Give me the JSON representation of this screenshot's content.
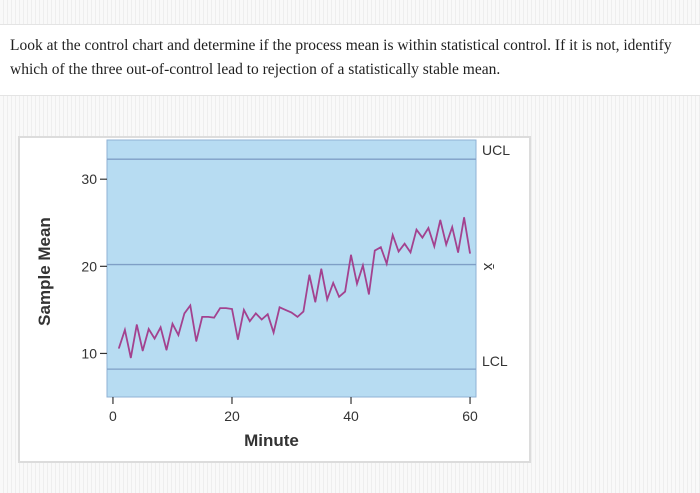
{
  "question": {
    "text": "Look at the control chart and determine if the process mean is within statistical control. If it is not, identify which of the three out-of-control lead to rejection of a statistically stable mean."
  },
  "chart_data": {
    "type": "line",
    "xlabel": "Minute",
    "ylabel": "Sample Mean",
    "xlim": [
      -1,
      61
    ],
    "ylim": [
      5,
      34.5
    ],
    "x_ticks": [
      0,
      20,
      40,
      60
    ],
    "x_tick_labels": [
      "0",
      "20",
      "40",
      "60"
    ],
    "y_ticks": [
      10,
      20,
      30
    ],
    "y_tick_labels": [
      "10",
      "20",
      "30"
    ],
    "grid": false,
    "background_color": "#b7dcf2",
    "line_color": "#a3428f",
    "control_line_color": "#7f9fc6",
    "control_lines": [
      {
        "name": "UCL",
        "label": "UCL",
        "value": 32.3
      },
      {
        "name": "CENTER",
        "label": "x̄",
        "value": 20.2
      },
      {
        "name": "LCL",
        "label": "LCL",
        "value": 8.2
      }
    ],
    "series": [
      {
        "x": [
          1,
          2,
          3,
          4,
          5,
          6,
          7,
          8,
          9,
          10,
          11,
          12,
          13,
          14,
          15,
          16,
          17,
          18,
          19,
          20,
          21,
          22,
          23,
          24,
          25,
          26,
          27,
          28,
          29,
          30,
          31,
          32,
          33,
          34,
          35,
          36,
          37,
          38,
          39,
          40,
          41,
          42,
          43,
          44,
          45,
          46,
          47,
          48,
          49,
          50,
          51,
          52,
          53,
          54,
          55,
          56,
          57,
          58,
          59,
          60
        ],
        "values": [
          10.6,
          12.7,
          9.5,
          13.3,
          10.3,
          12.8,
          11.7,
          13.0,
          10.4,
          13.4,
          12.1,
          14.6,
          15.5,
          11.4,
          14.2,
          14.2,
          14.1,
          15.2,
          15.2,
          15.1,
          11.6,
          15.0,
          13.7,
          14.6,
          13.9,
          14.5,
          12.4,
          15.3,
          15.0,
          14.7,
          14.2,
          14.8,
          19.0,
          15.9,
          19.7,
          16.2,
          18.1,
          16.5,
          17.1,
          21.3,
          18.0,
          20.1,
          16.8,
          21.8,
          22.2,
          20.3,
          23.6,
          21.7,
          22.6,
          21.6,
          24.2,
          23.3,
          24.4,
          22.3,
          25.3,
          22.5,
          24.5,
          21.6,
          25.6,
          21.5
        ]
      }
    ]
  }
}
